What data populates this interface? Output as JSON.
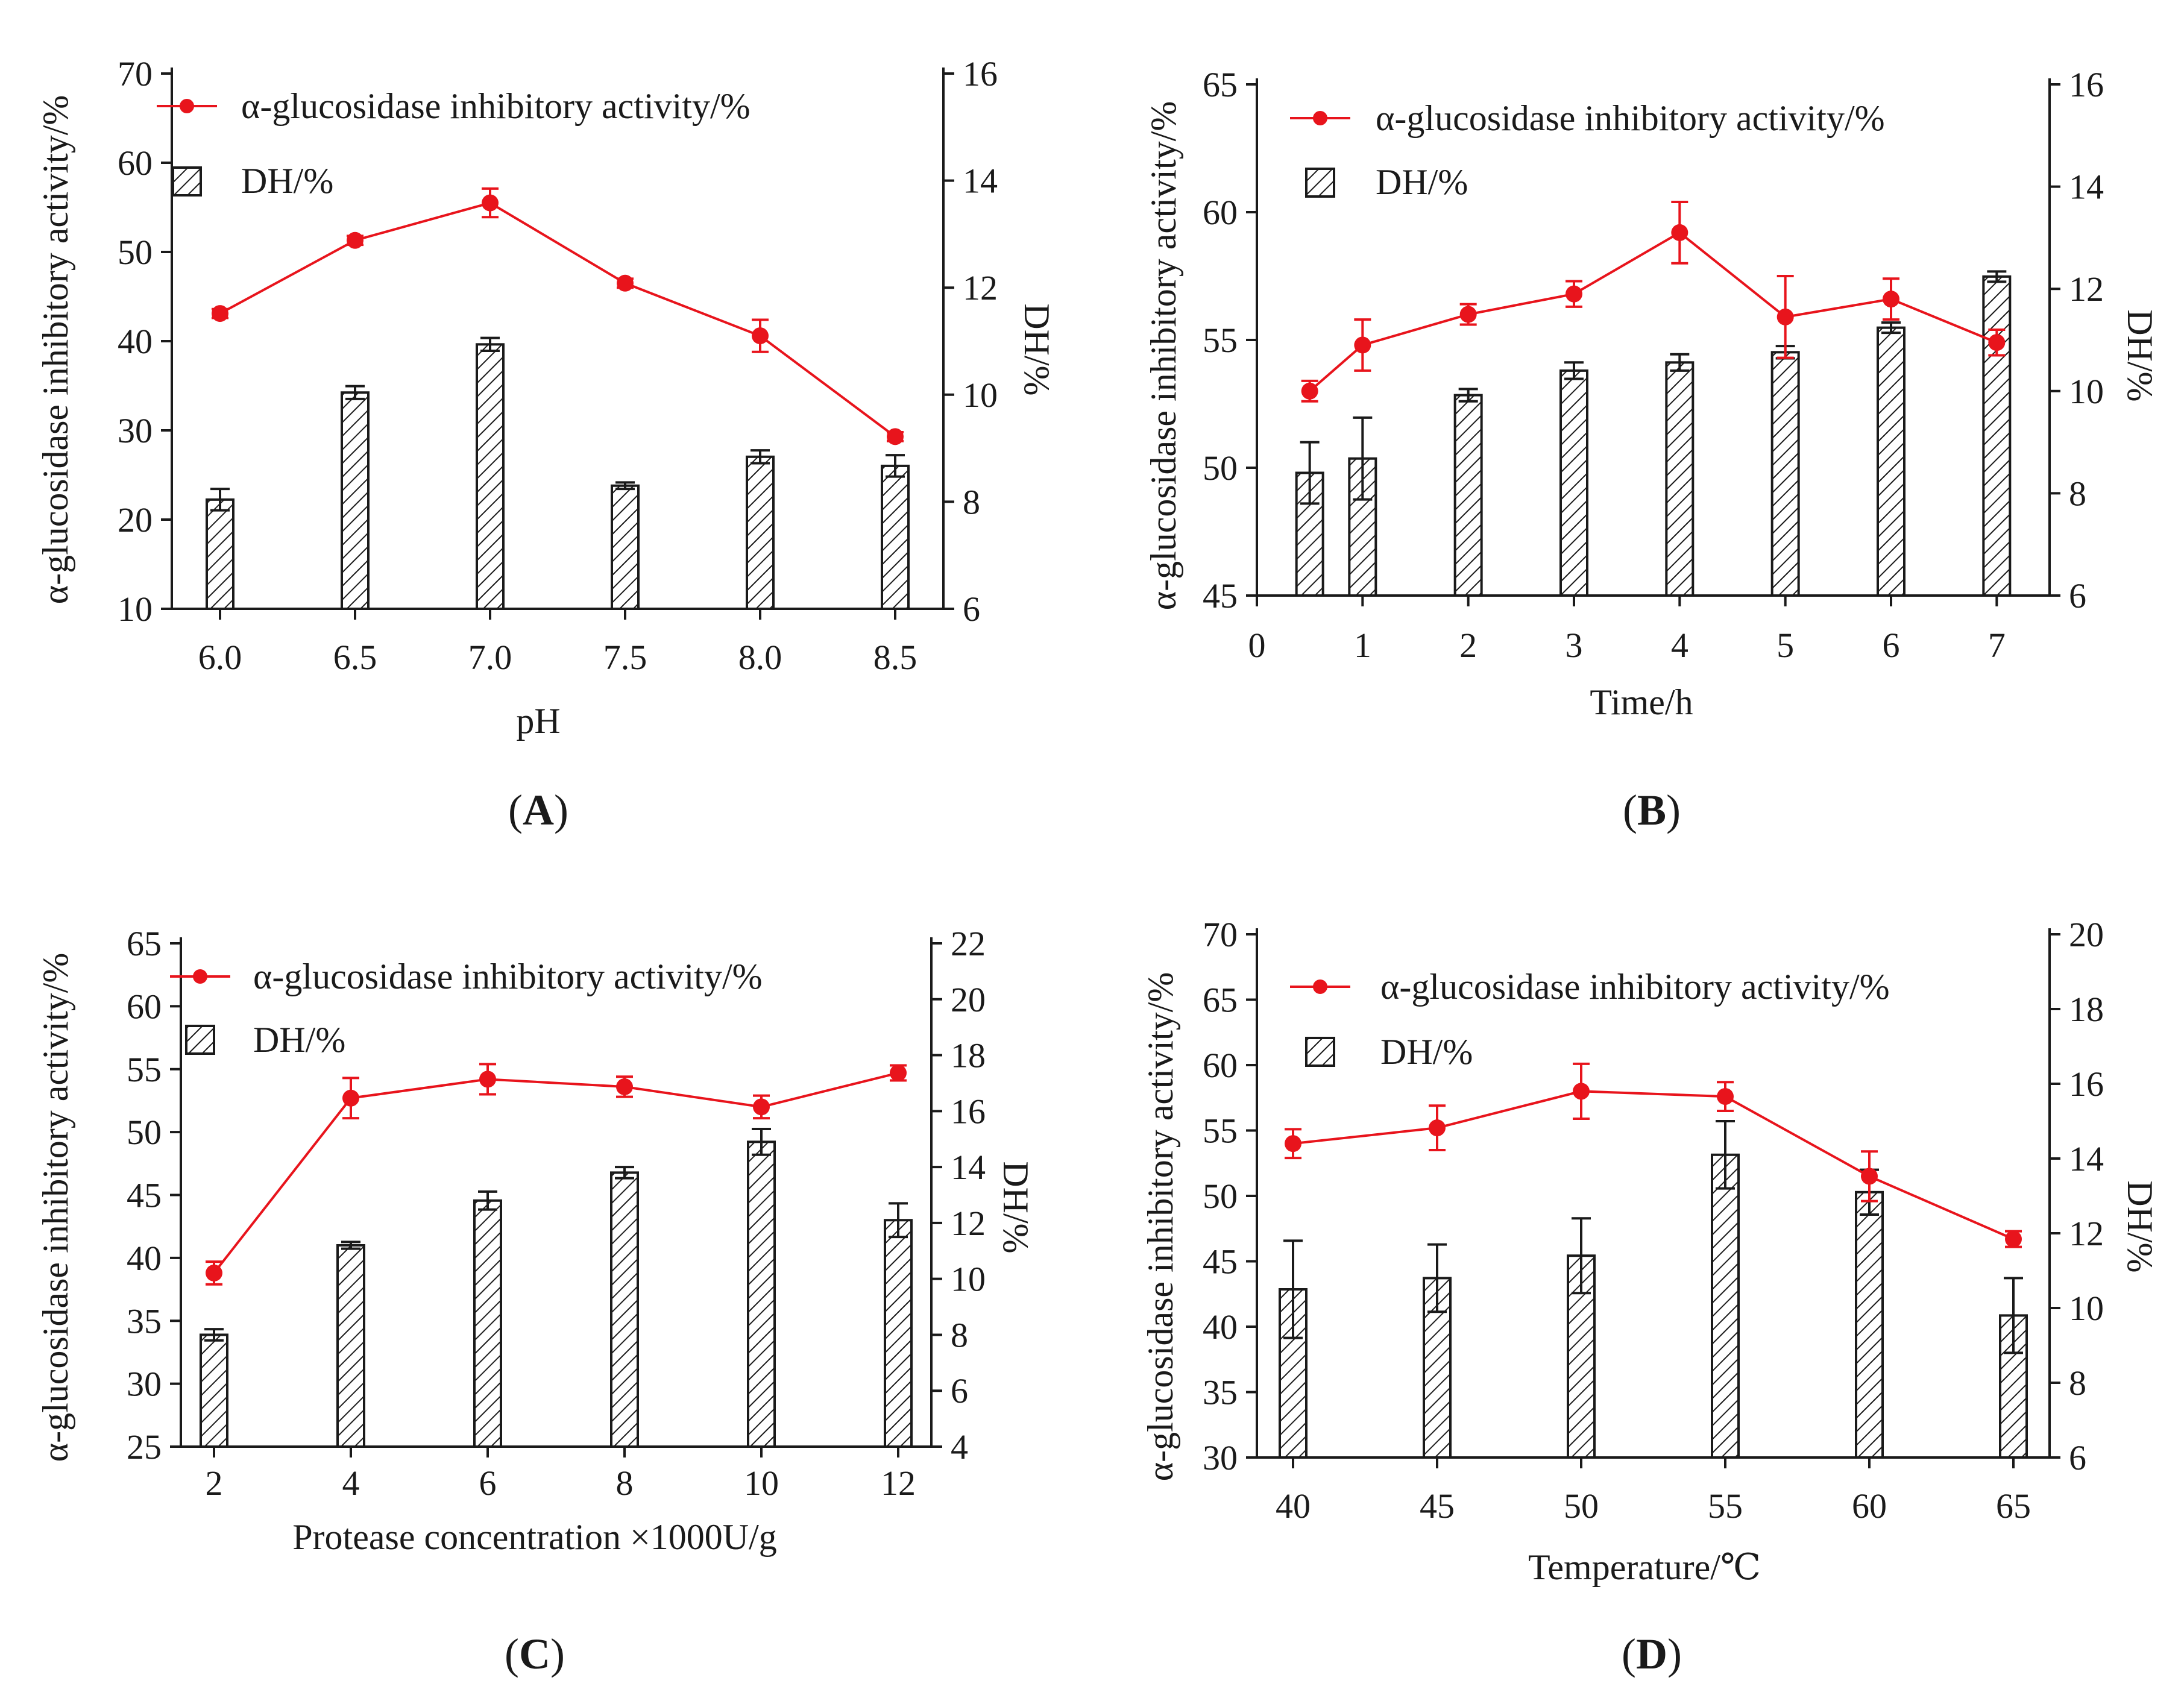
{
  "colors": {
    "line": "#e8141c",
    "axis": "#1a1a1a",
    "hatch": "#1a1a1a"
  },
  "icons": {
    "bar_fill": "diagonal-hatch",
    "line_marker": "filled-circle"
  },
  "panels": [
    {
      "label_letter": "A",
      "left_axis_label": "α-glucosidase inhibitory activity/%",
      "right_axis_label": "DH/%",
      "x_axis_label": "pH",
      "legend": {
        "line": "α-glucosidase inhibitory activity/%",
        "bar": "DH/%"
      }
    },
    {
      "label_letter": "B",
      "left_axis_label": "α-glucosidase inhibitory activity/%",
      "right_axis_label": "DH/%",
      "x_axis_label": "Time/h",
      "legend": {
        "line": "α-glucosidase inhibitory activity/%",
        "bar": "DH/%"
      }
    },
    {
      "label_letter": "C",
      "left_axis_label": "α-glucosidase inhibitory activity/%",
      "right_axis_label": "DH/%",
      "x_axis_label": "Protease concentration ×1000U/g",
      "legend": {
        "line": "α-glucosidase inhibitory activity/%",
        "bar": "DH/%"
      }
    },
    {
      "label_letter": "D",
      "left_axis_label": "α-glucosidase inhibitory activity/%",
      "right_axis_label": "DH/%",
      "x_axis_label": "Temperature/℃",
      "legend": {
        "line": "α-glucosidase inhibitory activity/%",
        "bar": "DH/%"
      }
    }
  ],
  "chart_data": [
    {
      "type": "bar+line",
      "xlabel": "pH",
      "x_axis_kind": "categorical",
      "x": [
        6.0,
        6.5,
        7.0,
        7.5,
        8.0,
        8.5
      ],
      "x_tick_labels": [
        "6.0",
        "6.5",
        "7.0",
        "7.5",
        "8.0",
        "8.5"
      ],
      "ylabel": "α-glucosidase inhibitory activity/%",
      "ylim": [
        10,
        70
      ],
      "yticks": [
        10,
        20,
        30,
        40,
        50,
        60,
        70
      ],
      "y2label": "DH/%",
      "y2lim": [
        6,
        16
      ],
      "y2ticks": [
        6,
        8,
        10,
        12,
        14,
        16
      ],
      "series": [
        {
          "name": "α-glucosidase inhibitory activity/%",
          "kind": "line",
          "axis": "left",
          "values": [
            43.1,
            51.3,
            55.5,
            46.5,
            40.6,
            29.3
          ],
          "errors": [
            0.5,
            0.5,
            1.6,
            0.5,
            1.8,
            0.5
          ]
        },
        {
          "name": "DH/%",
          "kind": "bar",
          "axis": "right",
          "values": [
            8.04,
            10.04,
            10.94,
            8.3,
            8.84,
            8.67
          ],
          "errors": [
            0.2,
            0.12,
            0.12,
            0.06,
            0.12,
            0.2
          ]
        }
      ]
    },
    {
      "type": "bar+line",
      "xlabel": "Time/h",
      "x_axis_kind": "numeric",
      "xlim": [
        0,
        7.5
      ],
      "xticks": [
        0,
        1,
        2,
        3,
        4,
        5,
        6,
        7
      ],
      "x": [
        0.5,
        1,
        2,
        3,
        4,
        5,
        6,
        7
      ],
      "ylabel": "α-glucosidase inhibitory activity/%",
      "ylim": [
        45,
        65
      ],
      "yticks": [
        45,
        50,
        55,
        60,
        65
      ],
      "y2label": "DH/%",
      "y2lim": [
        6,
        16
      ],
      "y2ticks": [
        6,
        8,
        10,
        12,
        14,
        16
      ],
      "series": [
        {
          "name": "α-glucosidase inhibitory activity/%",
          "kind": "line",
          "axis": "left",
          "values": [
            53.0,
            54.8,
            56.0,
            56.8,
            59.2,
            55.9,
            56.6,
            54.9
          ],
          "errors": [
            0.4,
            1.0,
            0.4,
            0.5,
            1.2,
            1.6,
            0.8,
            0.5
          ]
        },
        {
          "name": "DH/%",
          "kind": "bar",
          "axis": "right",
          "values": [
            8.4,
            8.68,
            9.92,
            10.4,
            10.56,
            10.76,
            11.24,
            12.24
          ],
          "errors": [
            0.6,
            0.8,
            0.12,
            0.16,
            0.16,
            0.12,
            0.1,
            0.1
          ]
        }
      ]
    },
    {
      "type": "bar+line",
      "xlabel": "Protease concentration ×1000U/g",
      "x_axis_kind": "categorical",
      "x": [
        2,
        4,
        6,
        8,
        10,
        12
      ],
      "x_tick_labels": [
        "2",
        "4",
        "6",
        "8",
        "10",
        "12"
      ],
      "ylabel": "α-glucosidase inhibitory activity/%",
      "ylim": [
        25,
        65
      ],
      "yticks": [
        25,
        30,
        35,
        40,
        45,
        50,
        55,
        60,
        65
      ],
      "y2label": "DH/%",
      "y2lim": [
        4,
        22
      ],
      "y2ticks": [
        4,
        6,
        8,
        10,
        12,
        14,
        16,
        18,
        20,
        22
      ],
      "series": [
        {
          "name": "α-glucosidase inhibitory activity/%",
          "kind": "line",
          "axis": "left",
          "values": [
            38.8,
            52.7,
            54.2,
            53.6,
            52.0,
            54.7
          ],
          "errors": [
            0.9,
            1.6,
            1.2,
            0.8,
            0.9,
            0.6
          ]
        },
        {
          "name": "DH/%",
          "kind": "bar",
          "axis": "right",
          "values": [
            8.0,
            11.2,
            12.8,
            13.8,
            14.9,
            12.1
          ],
          "errors": [
            0.2,
            0.12,
            0.32,
            0.2,
            0.46,
            0.6
          ]
        }
      ]
    },
    {
      "type": "bar+line",
      "xlabel": "Temperature/℃",
      "x_axis_kind": "categorical",
      "x": [
        40,
        45,
        50,
        55,
        60,
        65
      ],
      "x_tick_labels": [
        "40",
        "45",
        "50",
        "55",
        "60",
        "65"
      ],
      "ylabel": "α-glucosidase inhibitory activity/%",
      "ylim": [
        30,
        70
      ],
      "yticks": [
        30,
        35,
        40,
        45,
        50,
        55,
        60,
        65,
        70
      ],
      "y2label": "DH/%",
      "y2lim": [
        6,
        20
      ],
      "y2ticks": [
        6,
        8,
        10,
        12,
        14,
        16,
        18,
        20
      ],
      "series": [
        {
          "name": "α-glucosidase inhibitory activity/%",
          "kind": "line",
          "axis": "left",
          "values": [
            54.0,
            55.2,
            58.0,
            57.6,
            51.5,
            46.7
          ],
          "errors": [
            1.1,
            1.7,
            2.1,
            1.1,
            1.9,
            0.6
          ]
        },
        {
          "name": "DH/%",
          "kind": "bar",
          "axis": "right",
          "values": [
            10.5,
            10.8,
            11.4,
            14.1,
            13.1,
            9.8
          ],
          "errors": [
            1.3,
            0.9,
            1.0,
            0.9,
            0.6,
            1.0
          ]
        }
      ]
    }
  ]
}
